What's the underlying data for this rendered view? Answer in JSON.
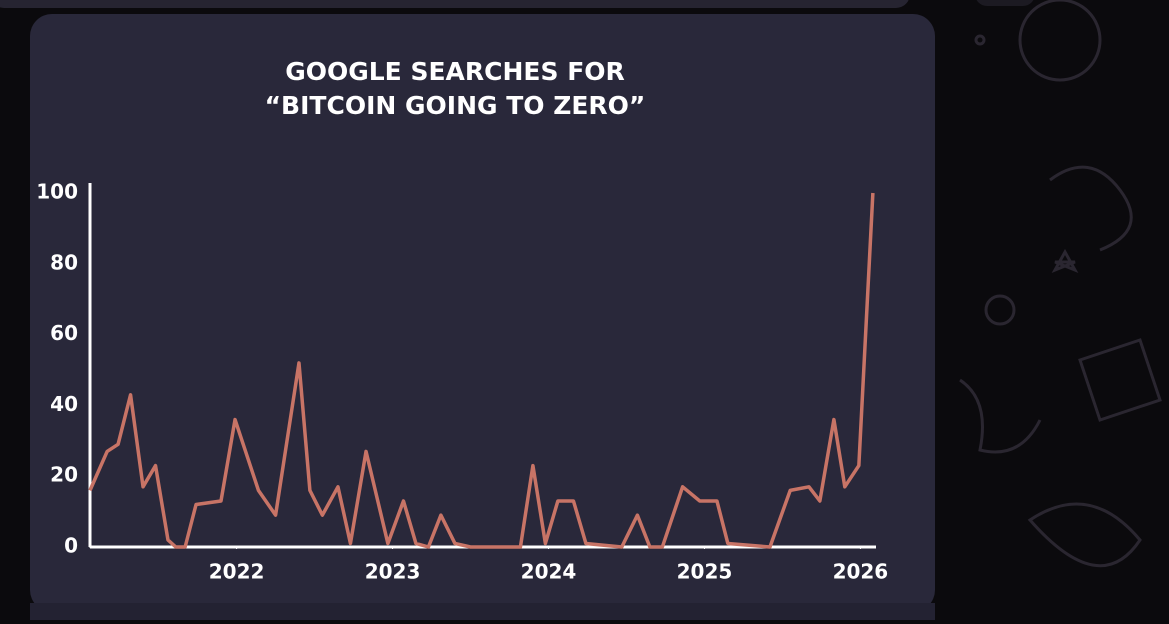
{
  "chart_data": {
    "type": "line",
    "title": "GOOGLE SEARCHES FOR",
    "subtitle": "“BITCOIN GOING TO ZERO”",
    "x": [
      2021.06,
      2021.17,
      2021.24,
      2021.32,
      2021.4,
      2021.48,
      2021.56,
      2021.61,
      2021.67,
      2021.74,
      2021.9,
      2021.99,
      2022.14,
      2022.25,
      2022.4,
      2022.47,
      2022.55,
      2022.65,
      2022.73,
      2022.83,
      2022.97,
      2023.07,
      2023.15,
      2023.23,
      2023.31,
      2023.4,
      2023.5,
      2023.82,
      2023.9,
      2023.98,
      2024.06,
      2024.16,
      2024.24,
      2024.47,
      2024.57,
      2024.65,
      2024.73,
      2024.86,
      2024.97,
      2025.08,
      2025.15,
      2025.42,
      2025.55,
      2025.67,
      2025.74,
      2025.83,
      2025.9,
      2025.99,
      2026.08
    ],
    "series": [
      {
        "color": "#c87466",
        "values": [
          16,
          27,
          29,
          43,
          17,
          23,
          2,
          0,
          0,
          12,
          13,
          36,
          16,
          9,
          52,
          16,
          9,
          17,
          1,
          27,
          1,
          13,
          1,
          0,
          9,
          1,
          0,
          0,
          23,
          1,
          13,
          13,
          1,
          0,
          9,
          0,
          0,
          17,
          13,
          13,
          1,
          0,
          16,
          17,
          13,
          36,
          17,
          23,
          100
        ]
      }
    ],
    "xlim": [
      2021.06,
      2026.1
    ],
    "xticks": [
      2022,
      2023,
      2024,
      2025,
      2026
    ],
    "ylim": [
      0,
      100
    ],
    "yticks": [
      0,
      20,
      40,
      60,
      80,
      100
    ]
  }
}
